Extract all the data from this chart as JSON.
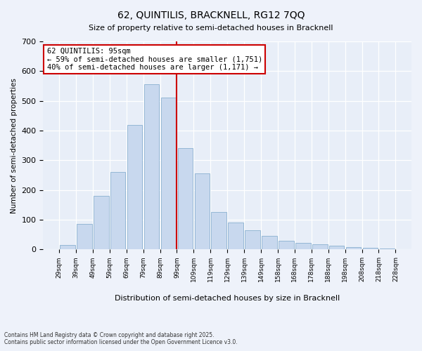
{
  "title": "62, QUINTILIS, BRACKNELL, RG12 7QQ",
  "subtitle": "Size of property relative to semi-detached houses in Bracknell",
  "xlabel": "Distribution of semi-detached houses by size in Bracknell",
  "ylabel": "Number of semi-detached properties",
  "bins": [
    "29sqm",
    "39sqm",
    "49sqm",
    "59sqm",
    "69sqm",
    "79sqm",
    "89sqm",
    "99sqm",
    "109sqm",
    "119sqm",
    "129sqm",
    "139sqm",
    "149sqm",
    "158sqm",
    "168sqm",
    "178sqm",
    "188sqm",
    "198sqm",
    "208sqm",
    "218sqm",
    "228sqm"
  ],
  "counts": [
    15,
    85,
    180,
    260,
    420,
    555,
    510,
    340,
    255,
    125,
    90,
    65,
    45,
    30,
    22,
    18,
    12,
    8,
    5,
    3
  ],
  "bar_color": "#c8d8ee",
  "bar_edge_color": "#8ab0d0",
  "vline_color": "#cc0000",
  "vline_pos": 6.5,
  "annotation_text": "62 QUINTILIS: 95sqm\n← 59% of semi-detached houses are smaller (1,751)\n40% of semi-detached houses are larger (1,171) →",
  "footnote1": "Contains HM Land Registry data © Crown copyright and database right 2025.",
  "footnote2": "Contains public sector information licensed under the Open Government Licence v3.0.",
  "ylim": [
    0,
    700
  ],
  "yticks": [
    0,
    100,
    200,
    300,
    400,
    500,
    600,
    700
  ],
  "background_color": "#eef2fa",
  "plot_bg_color": "#e8eef8"
}
